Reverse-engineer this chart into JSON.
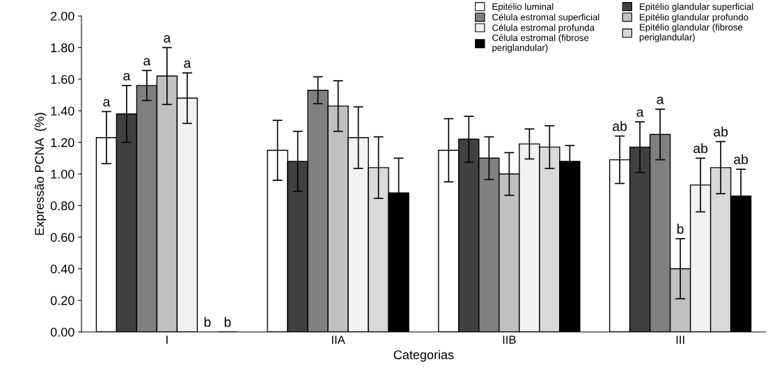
{
  "chart_data": {
    "type": "bar",
    "xlabel": "Categorias",
    "ylabel": "Expressão PCNA  (%)",
    "categories": [
      "I",
      "IIA",
      "IIB",
      "III"
    ],
    "ylim": [
      0,
      2
    ],
    "yticks": [
      {
        "value": 0,
        "label": "0.00"
      },
      {
        "value": 0.2,
        "label": "0.20"
      },
      {
        "value": 0.4,
        "label": "0.40"
      },
      {
        "value": 0.6,
        "label": "0.60"
      },
      {
        "value": 0.8,
        "label": "0.80"
      },
      {
        "value": 1.0,
        "label": "1.00"
      },
      {
        "value": 1.2,
        "label": "1.20"
      },
      {
        "value": 1.4,
        "label": "1.40"
      },
      {
        "value": 1.6,
        "label": "1.60"
      },
      {
        "value": 1.8,
        "label": "1.80"
      },
      {
        "value": 2.0,
        "label": "2.00"
      }
    ],
    "grid": false,
    "legend": "top right",
    "series": [
      {
        "name": "Epitélio luminal",
        "color": "#ffffff",
        "values": [
          1.23,
          1.15,
          1.15,
          1.09
        ],
        "errors": [
          0.165,
          0.19,
          0.2,
          0.15
        ],
        "value_labels": [
          "a",
          null,
          null,
          "ab"
        ]
      },
      {
        "name": "Epitélio glandular superficial",
        "color": "#404040",
        "values": [
          1.38,
          1.08,
          1.22,
          1.17
        ],
        "errors": [
          0.18,
          0.19,
          0.145,
          0.16
        ],
        "value_labels": [
          "a",
          null,
          null,
          "a"
        ]
      },
      {
        "name": "Célula estromal superficial",
        "color": "#808080",
        "values": [
          1.56,
          1.53,
          1.1,
          1.25
        ],
        "errors": [
          0.095,
          0.085,
          0.135,
          0.16
        ],
        "value_labels": [
          "a",
          null,
          null,
          "a"
        ]
      },
      {
        "name": "Epitélio glandular profundo",
        "color": "#c0c0c0",
        "values": [
          1.62,
          1.43,
          1.0,
          0.4
        ],
        "errors": [
          0.18,
          0.16,
          0.135,
          0.19
        ],
        "value_labels": [
          "a",
          null,
          null,
          "b"
        ]
      },
      {
        "name": "Célula estromal profunda",
        "color": "#f2f2f2",
        "values": [
          1.48,
          1.23,
          1.19,
          0.93
        ],
        "errors": [
          0.16,
          0.195,
          0.095,
          0.17
        ],
        "value_labels": [
          "a",
          null,
          null,
          "ab"
        ]
      },
      {
        "name": "Epitélio glandular (fibrose\nperiglandular)",
        "color": "#d9d9d9",
        "values": [
          0,
          1.04,
          1.17,
          1.04
        ],
        "errors": [
          null,
          0.195,
          0.135,
          0.165
        ],
        "value_labels": [
          "b",
          null,
          null,
          "ab"
        ]
      },
      {
        "name": "Célula estromal (fibrose\nperiglandular)",
        "color": "#000000",
        "values": [
          0,
          0.88,
          1.08,
          0.86
        ],
        "errors": [
          null,
          0.22,
          0.1,
          0.17
        ],
        "value_labels": [
          "b",
          null,
          null,
          "ab"
        ]
      }
    ]
  }
}
